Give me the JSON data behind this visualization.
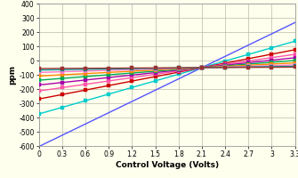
{
  "title": "",
  "xlabel": "Control Voltage (Volts)",
  "ylabel": "ppm",
  "xlim": [
    0,
    3.3
  ],
  "ylim": [
    -600,
    400
  ],
  "xticks": [
    0,
    0.3,
    0.6,
    0.9,
    1.2,
    1.5,
    1.8,
    2.1,
    2.4,
    2.7,
    3.0,
    3.3
  ],
  "yticks": [
    -600,
    -500,
    -400,
    -300,
    -200,
    -100,
    0,
    100,
    200,
    300,
    400
  ],
  "pivot_x": 2.1,
  "pivot_y": -50,
  "lines": [
    {
      "color": "#5555FF",
      "slope": 264,
      "marker": null,
      "linewidth": 1.0
    },
    {
      "color": "#00CCCC",
      "slope": 155,
      "marker": "s",
      "markersize": 2.5,
      "linewidth": 1.0
    },
    {
      "color": "#CC0000",
      "slope": 105,
      "marker": "s",
      "markersize": 2.5,
      "linewidth": 1.0
    },
    {
      "color": "#FF55AA",
      "slope": 78,
      "marker": "s",
      "markersize": 2.5,
      "linewidth": 1.0
    },
    {
      "color": "#AA00AA",
      "slope": 58,
      "marker": "s",
      "markersize": 2.5,
      "linewidth": 1.0
    },
    {
      "color": "#00AA55",
      "slope": 42,
      "marker": "s",
      "markersize": 2.5,
      "linewidth": 1.0
    },
    {
      "color": "#FF8800",
      "slope": 28,
      "marker": "s",
      "markersize": 2.5,
      "linewidth": 1.0
    },
    {
      "color": "#FF77CC",
      "slope": 16,
      "marker": "s",
      "markersize": 2.5,
      "linewidth": 1.0
    },
    {
      "color": "#009999",
      "slope": 8,
      "marker": "s",
      "markersize": 2.5,
      "linewidth": 1.0
    },
    {
      "color": "#993333",
      "slope": 3,
      "marker": "s",
      "markersize": 2.5,
      "linewidth": 1.0
    }
  ],
  "bg_color": "#FFFFEE",
  "grid_color": "#BBBBAA"
}
